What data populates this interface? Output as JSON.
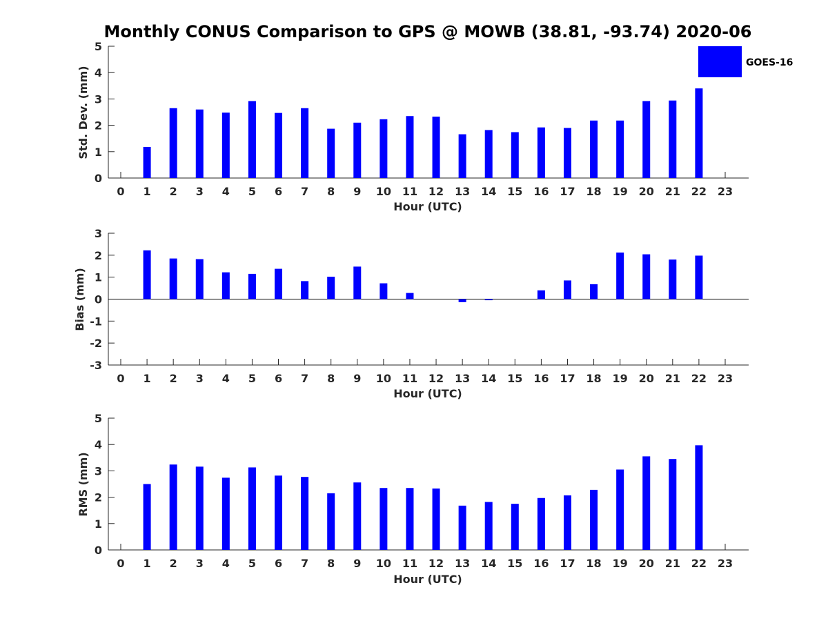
{
  "title": "Monthly CONUS Comparison to GPS @ MOWB (38.81, -93.74) 2020-06",
  "bar_color": "#0000ff",
  "legend": {
    "label": "GOES-16",
    "position": "top-right"
  },
  "chart_data": [
    {
      "type": "bar",
      "ylabel": "Std. Dev. (mm)",
      "xlabel": "Hour (UTC)",
      "ylim": [
        0,
        5
      ],
      "yticks": [
        "0",
        "1",
        "2",
        "3",
        "4",
        "5"
      ],
      "xticks": [
        "0",
        "1",
        "2",
        "3",
        "4",
        "5",
        "6",
        "7",
        "8",
        "9",
        "10",
        "11",
        "12",
        "13",
        "14",
        "15",
        "16",
        "17",
        "18",
        "19",
        "20",
        "21",
        "22",
        "23"
      ],
      "series": [
        {
          "name": "GOES-16",
          "x": [
            1,
            2,
            3,
            4,
            5,
            6,
            7,
            8,
            9,
            10,
            11,
            12,
            13,
            14,
            15,
            16,
            17,
            18,
            19,
            20,
            21,
            22
          ],
          "values": [
            1.18,
            2.65,
            2.6,
            2.48,
            2.92,
            2.47,
            2.65,
            1.87,
            2.1,
            2.23,
            2.35,
            2.33,
            1.66,
            1.82,
            1.74,
            1.92,
            1.9,
            2.18,
            2.18,
            2.92,
            2.94,
            3.4
          ]
        }
      ]
    },
    {
      "type": "bar",
      "ylabel": "Bias (mm)",
      "xlabel": "Hour (UTC)",
      "ylim": [
        -3,
        3
      ],
      "yticks": [
        "-3",
        "-2",
        "-1",
        "0",
        "1",
        "2",
        "3"
      ],
      "xticks": [
        "0",
        "1",
        "2",
        "3",
        "4",
        "5",
        "6",
        "7",
        "8",
        "9",
        "10",
        "11",
        "12",
        "13",
        "14",
        "15",
        "16",
        "17",
        "18",
        "19",
        "20",
        "21",
        "22",
        "23"
      ],
      "zero_line": true,
      "series": [
        {
          "name": "GOES-16",
          "x": [
            1,
            2,
            3,
            4,
            5,
            6,
            7,
            8,
            9,
            10,
            11,
            12,
            13,
            14,
            15,
            16,
            17,
            18,
            19,
            20,
            21,
            22
          ],
          "values": [
            2.22,
            1.85,
            1.82,
            1.22,
            1.15,
            1.38,
            0.82,
            1.02,
            1.48,
            0.72,
            0.28,
            0.0,
            -0.14,
            -0.05,
            0.0,
            0.4,
            0.85,
            0.68,
            2.12,
            2.04,
            1.8,
            1.98
          ]
        }
      ]
    },
    {
      "type": "bar",
      "ylabel": "RMS (mm)",
      "xlabel": "Hour (UTC)",
      "ylim": [
        0,
        5
      ],
      "yticks": [
        "0",
        "1",
        "2",
        "3",
        "4",
        "5"
      ],
      "xticks": [
        "0",
        "1",
        "2",
        "3",
        "4",
        "5",
        "6",
        "7",
        "8",
        "9",
        "10",
        "11",
        "12",
        "13",
        "14",
        "15",
        "16",
        "17",
        "18",
        "19",
        "20",
        "21",
        "22",
        "23"
      ],
      "series": [
        {
          "name": "GOES-16",
          "x": [
            1,
            2,
            3,
            4,
            5,
            6,
            7,
            8,
            9,
            10,
            11,
            12,
            13,
            14,
            15,
            16,
            17,
            18,
            19,
            20,
            21,
            22
          ],
          "values": [
            2.5,
            3.24,
            3.16,
            2.74,
            3.13,
            2.82,
            2.77,
            2.15,
            2.56,
            2.35,
            2.35,
            2.33,
            1.68,
            1.82,
            1.75,
            1.97,
            2.07,
            2.28,
            3.05,
            3.55,
            3.45,
            3.97
          ]
        }
      ]
    }
  ]
}
